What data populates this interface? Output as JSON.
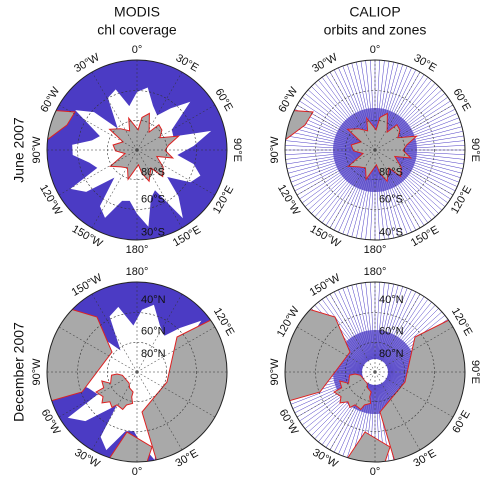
{
  "columns": [
    {
      "title": "MODIS",
      "subtitle": "chl coverage"
    },
    {
      "title": "CALIOP",
      "subtitle": "orbits and zones"
    }
  ],
  "rows": [
    "June 2007",
    "December 2007"
  ],
  "panels": [
    {
      "labels": [
        "0°",
        "30°E",
        "60°E",
        "90°E",
        "120°E",
        "150°E",
        "180°",
        "150°W",
        "120°W",
        "90°W",
        "60°W",
        "30°W",
        "80°S",
        "60°S",
        "30°S"
      ]
    },
    {
      "labels": [
        "0°",
        "30°E",
        "60°E",
        "90°E",
        "120°E",
        "150°E",
        "180°",
        "150°W",
        "120°W",
        "90°W",
        "60°W",
        "30°W",
        "80°S",
        "60°S",
        "40°S"
      ]
    },
    {
      "labels": [
        "180°",
        "150°W",
        "120°E",
        "90°W",
        "60°W",
        "30°W",
        "0°",
        "30°E",
        "40°N",
        "60°N",
        "80°N"
      ]
    },
    {
      "labels": [
        "180°",
        "150°W",
        "120°W",
        "120°E",
        "90°W",
        "90°E",
        "60°W",
        "60°E",
        "30°W",
        "0°",
        "30°E",
        "40°N",
        "60°N",
        "80°N"
      ]
    }
  ]
}
